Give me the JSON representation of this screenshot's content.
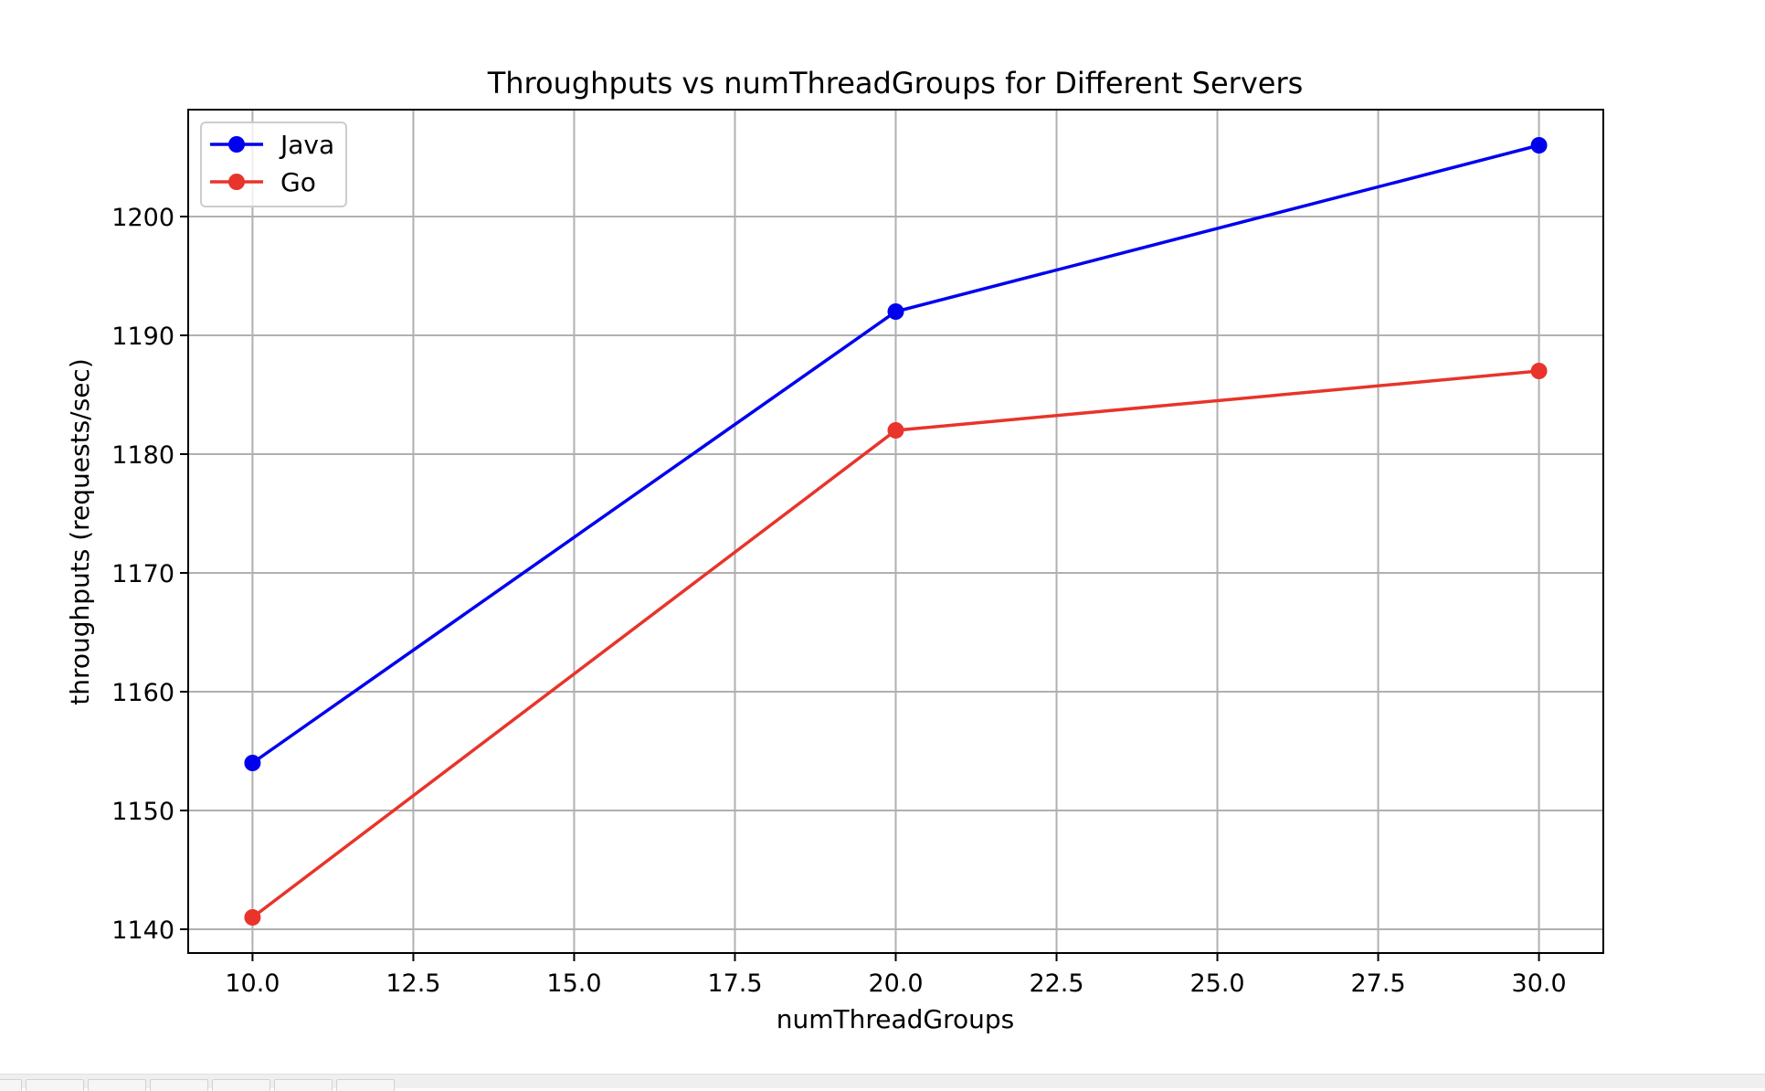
{
  "chart_data": {
    "type": "line",
    "title": "Throughputs vs numThreadGroups for Different Servers",
    "xlabel": "numThreadGroups",
    "ylabel": "throughputs (requests/sec)",
    "x": [
      10,
      20,
      30
    ],
    "xlim": [
      9,
      31
    ],
    "ylim": [
      1138,
      1209
    ],
    "xticks": [
      "10.0",
      "12.5",
      "15.0",
      "17.5",
      "20.0",
      "22.5",
      "25.0",
      "27.5",
      "30.0"
    ],
    "yticks": [
      "1140",
      "1150",
      "1160",
      "1170",
      "1180",
      "1190",
      "1200"
    ],
    "grid": true,
    "legend_position": "upper left",
    "series": [
      {
        "name": "Java",
        "color": "#0000ee",
        "values": [
          1154,
          1192,
          1206
        ]
      },
      {
        "name": "Go",
        "color": "#e8342a",
        "values": [
          1141,
          1182,
          1187
        ]
      }
    ]
  }
}
